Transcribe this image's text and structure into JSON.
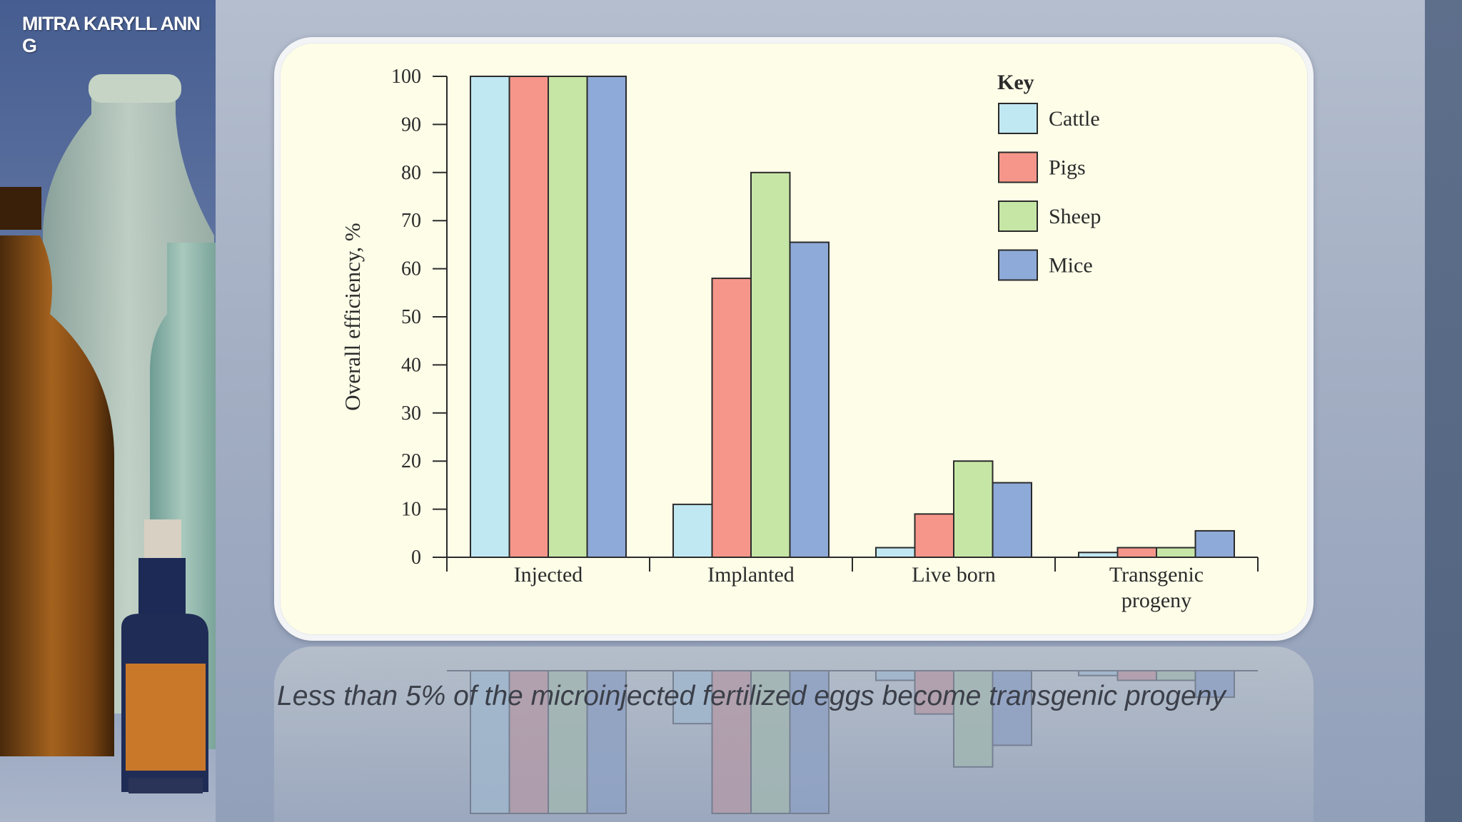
{
  "author": "MITRA KARYLL ANN G",
  "caption": "Less than 5% of the microinjected fertilized eggs become transgenic progeny",
  "chart_data": {
    "type": "bar",
    "title": "",
    "xlabel": "",
    "ylabel": "Overall efficiency, %",
    "ylim": [
      0,
      100
    ],
    "yticks": [
      0,
      10,
      20,
      30,
      40,
      50,
      60,
      70,
      80,
      90,
      100
    ],
    "categories": [
      "Injected",
      "Implanted",
      "Live born",
      "Transgenic progeny"
    ],
    "legend_title": "Key",
    "legend_position": "top-right",
    "grid": false,
    "series": [
      {
        "name": "Cattle",
        "color": "#c0e8f2",
        "values": [
          100,
          11,
          2,
          1
        ]
      },
      {
        "name": "Pigs",
        "color": "#f6968a",
        "values": [
          100,
          58,
          9,
          2
        ]
      },
      {
        "name": "Sheep",
        "color": "#c6e6a6",
        "values": [
          100,
          80,
          20,
          2
        ]
      },
      {
        "name": "Mice",
        "color": "#8eaad8",
        "values": [
          100,
          65.5,
          15.5,
          5.5
        ]
      }
    ]
  }
}
